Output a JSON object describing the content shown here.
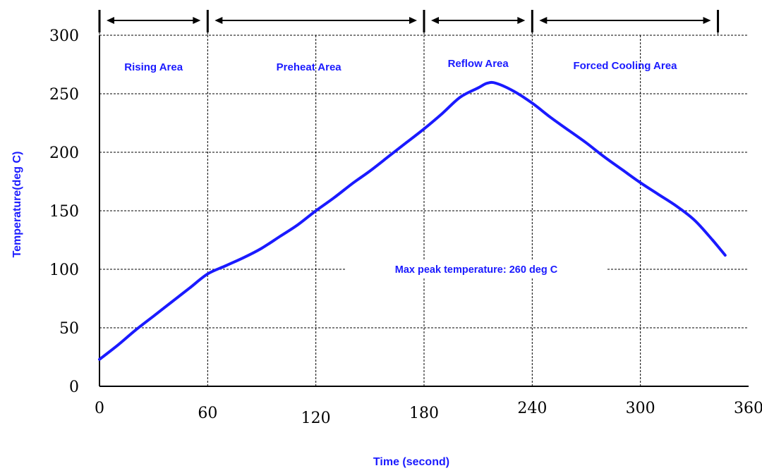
{
  "chart_data": {
    "type": "line",
    "title": "",
    "xlabel": "Time (second)",
    "ylabel": "Temperature(deg C)",
    "xlim": [
      0,
      360
    ],
    "ylim": [
      0,
      300
    ],
    "x_ticks": [
      "0",
      "60",
      "120",
      "180",
      "240",
      "300",
      "360"
    ],
    "y_ticks": [
      "0",
      "50",
      "100",
      "150",
      "200",
      "250",
      "300"
    ],
    "grid": true,
    "x": [
      0,
      10,
      20,
      30,
      40,
      50,
      60,
      70,
      80,
      90,
      100,
      110,
      120,
      130,
      140,
      150,
      160,
      170,
      180,
      190,
      200,
      210,
      215,
      220,
      230,
      240,
      250,
      260,
      270,
      280,
      290,
      300,
      310,
      320,
      330,
      340,
      347
    ],
    "series": [
      {
        "values": [
          23,
          35,
          48,
          60,
          72,
          84,
          96,
          103,
          110,
          118,
          128,
          138,
          150,
          161,
          173,
          184,
          196,
          208,
          220,
          233,
          247,
          255,
          259,
          259,
          252,
          242,
          230,
          219,
          208,
          196,
          185,
          174,
          164,
          154,
          142,
          125,
          112
        ]
      }
    ],
    "regions": [
      {
        "label": "Rising Area",
        "x_start": 0,
        "x_end": 60
      },
      {
        "label": "Preheat Area",
        "x_start": 60,
        "x_end": 180
      },
      {
        "label": "Reflow Area",
        "x_start": 180,
        "x_end": 240
      },
      {
        "label": "Forced Cooling Area",
        "x_start": 240,
        "x_end": 343
      }
    ],
    "annotations": [
      {
        "text": "Max peak temperature: 260 deg C",
        "y": 100
      }
    ],
    "colors": {
      "line": "#1a1aff",
      "labels": "#1a1aff",
      "axes": "#000000",
      "grid": "#000000"
    }
  }
}
